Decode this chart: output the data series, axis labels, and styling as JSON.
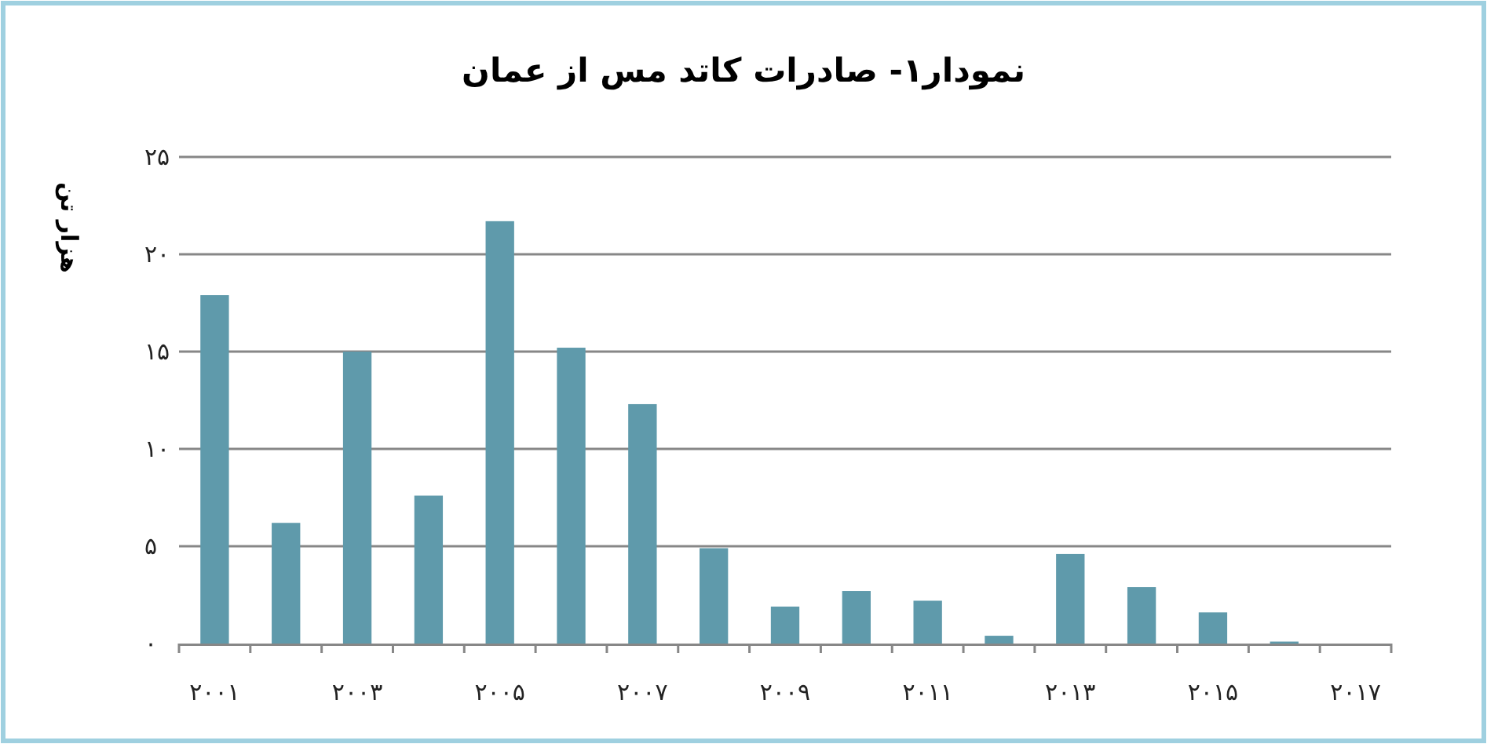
{
  "chart_data": {
    "type": "bar",
    "title": "نمودار۱- صادرات کاتد مس از عمان",
    "ylabel": "هزار تن",
    "categories": [
      "۲۰۰۱",
      null,
      "۲۰۰۳",
      null,
      "۲۰۰۵",
      null,
      "۲۰۰۷",
      null,
      "۲۰۰۹",
      null,
      "۲۰۱۱",
      null,
      "۲۰۱۳",
      null,
      "۲۰۱۵",
      null,
      "۲۰۱۷"
    ],
    "values": [
      17.9,
      6.2,
      15.0,
      7.6,
      21.7,
      15.2,
      12.3,
      4.9,
      1.9,
      2.7,
      2.2,
      0.4,
      4.6,
      2.9,
      1.6,
      0.1,
      0
    ],
    "color": "#5f9aab",
    "ylim": [
      0,
      25
    ],
    "yticks": [
      {
        "value": 0,
        "label": "۰"
      },
      {
        "value": 5,
        "label": "۵"
      },
      {
        "value": 10,
        "label": "۱۰"
      },
      {
        "value": 15,
        "label": "۱۵"
      },
      {
        "value": 20,
        "label": "۲۰"
      },
      {
        "value": 25,
        "label": "۲۵"
      }
    ],
    "grid": "y"
  }
}
